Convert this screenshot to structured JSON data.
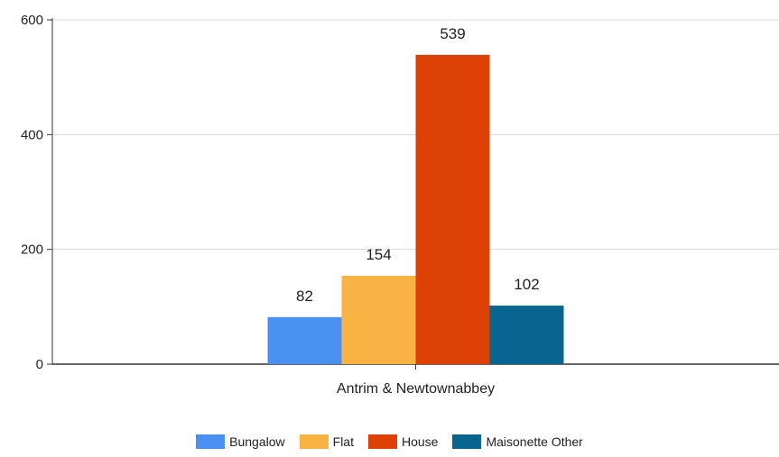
{
  "chart_data": {
    "type": "bar",
    "categories": [
      "Antrim & Newtownabbey"
    ],
    "series": [
      {
        "name": "Bungalow",
        "values": [
          82
        ],
        "color": "#4a90f0"
      },
      {
        "name": "Flat",
        "values": [
          154
        ],
        "color": "#f8b342"
      },
      {
        "name": "House",
        "values": [
          539
        ],
        "color": "#dd4106"
      },
      {
        "name": "Maisonette Other",
        "values": [
          102
        ],
        "color": "#07658f"
      }
    ],
    "title": "",
    "xlabel": "",
    "ylabel": "",
    "ylim": [
      0,
      600
    ],
    "yticks": [
      0,
      200,
      400,
      600
    ],
    "grid": true,
    "legend": "bottom-center"
  }
}
